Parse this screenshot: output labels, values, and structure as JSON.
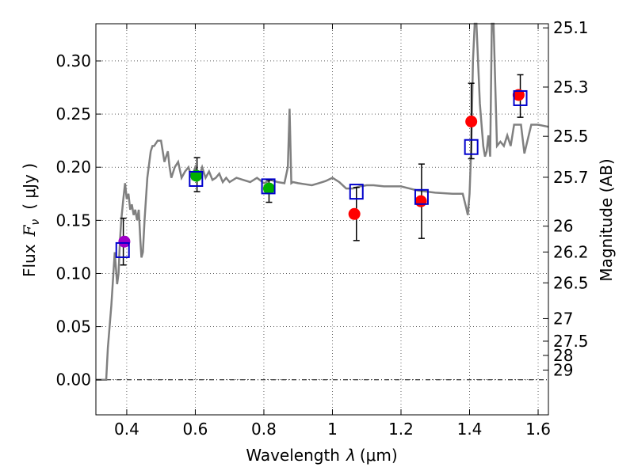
{
  "chart_data": {
    "type": "scatter",
    "xlabel_prefix": "Wavelength",
    "xlabel_unit": "(μm)",
    "ylabel_prefix": "Flux",
    "ylabel_unit": "( μJy )",
    "y2label": "Magnitude (AB)",
    "xlim": [
      0.31,
      1.63
    ],
    "ylim": [
      -0.033,
      0.335
    ],
    "x_ticks": [
      0.4,
      0.6,
      0.8,
      1.0,
      1.2,
      1.4,
      1.6
    ],
    "x_tick_labels": [
      "0.4",
      "0.6",
      "0.8",
      "1",
      "1.2",
      "1.4",
      "1.6"
    ],
    "y_ticks": [
      0.0,
      0.05,
      0.1,
      0.15,
      0.2,
      0.25,
      0.3
    ],
    "y_tick_labels": [
      "0.00",
      "0.05",
      "0.10",
      "0.15",
      "0.20",
      "0.25",
      "0.30"
    ],
    "mag_ticks": [
      25.1,
      25.3,
      25.5,
      25.7,
      26,
      26.2,
      26.5,
      27,
      27.5,
      28,
      29
    ],
    "mag_tick_labels": [
      "25.1",
      "25.3",
      "25.5",
      "25.7",
      "26",
      "26.2",
      "26.5",
      "27",
      "27.5",
      "28",
      "29"
    ],
    "grid": true,
    "colors": {
      "template": "#808080",
      "model_box": "#0000cc",
      "errorbar": "#000000",
      "zero_line": "#000000"
    },
    "template_spectrum": {
      "x": [
        0.31,
        0.34,
        0.345,
        0.355,
        0.365,
        0.372,
        0.376,
        0.38,
        0.384,
        0.39,
        0.395,
        0.4,
        0.405,
        0.41,
        0.415,
        0.42,
        0.425,
        0.43,
        0.435,
        0.44,
        0.443,
        0.447,
        0.452,
        0.46,
        0.47,
        0.475,
        0.48,
        0.49,
        0.5,
        0.51,
        0.52,
        0.525,
        0.53,
        0.54,
        0.55,
        0.56,
        0.57,
        0.58,
        0.59,
        0.6,
        0.61,
        0.62,
        0.63,
        0.64,
        0.65,
        0.66,
        0.67,
        0.68,
        0.69,
        0.7,
        0.72,
        0.74,
        0.76,
        0.78,
        0.8,
        0.82,
        0.84,
        0.86,
        0.87,
        0.875,
        0.88,
        0.885,
        0.9,
        0.92,
        0.94,
        0.96,
        0.98,
        1.0,
        1.02,
        1.04,
        1.06,
        1.08,
        1.1,
        1.12,
        1.15,
        1.2,
        1.25,
        1.3,
        1.35,
        1.38,
        1.39,
        1.395,
        1.4,
        1.405,
        1.41,
        1.415,
        1.42,
        1.43,
        1.44,
        1.445,
        1.45,
        1.455,
        1.46,
        1.465,
        1.47,
        1.48,
        1.49,
        1.5,
        1.51,
        1.52,
        1.53,
        1.55,
        1.56,
        1.58,
        1.6,
        1.63
      ],
      "y": [
        0.0,
        0.0,
        0.03,
        0.07,
        0.12,
        0.09,
        0.1,
        0.13,
        0.15,
        0.17,
        0.185,
        0.17,
        0.175,
        0.16,
        0.165,
        0.155,
        0.16,
        0.15,
        0.16,
        0.13,
        0.115,
        0.12,
        0.15,
        0.19,
        0.215,
        0.22,
        0.22,
        0.225,
        0.225,
        0.205,
        0.215,
        0.2,
        0.19,
        0.2,
        0.205,
        0.19,
        0.196,
        0.2,
        0.19,
        0.2,
        0.19,
        0.2,
        0.19,
        0.196,
        0.188,
        0.19,
        0.194,
        0.186,
        0.19,
        0.186,
        0.19,
        0.188,
        0.186,
        0.19,
        0.185,
        0.188,
        0.186,
        0.185,
        0.2,
        0.255,
        0.185,
        0.186,
        0.185,
        0.184,
        0.183,
        0.185,
        0.187,
        0.19,
        0.186,
        0.18,
        0.18,
        0.182,
        0.183,
        0.183,
        0.182,
        0.182,
        0.178,
        0.176,
        0.175,
        0.175,
        0.162,
        0.155,
        0.175,
        0.22,
        0.3,
        0.34,
        0.34,
        0.26,
        0.22,
        0.21,
        0.215,
        0.23,
        0.21,
        0.34,
        0.34,
        0.22,
        0.224,
        0.22,
        0.23,
        0.22,
        0.24,
        0.24,
        0.213,
        0.24,
        0.24,
        0.238
      ]
    },
    "photometry": [
      {
        "x": 0.393,
        "y": 0.13,
        "color": "#a000c8"
      },
      {
        "x": 0.603,
        "y": 0.192,
        "color": "#00b000"
      },
      {
        "x": 0.815,
        "y": 0.18,
        "color": "#00b000"
      },
      {
        "x": 1.064,
        "y": 0.156,
        "color": "#ff0000"
      },
      {
        "x": 1.258,
        "y": 0.168,
        "color": "#ff0000"
      },
      {
        "x": 1.405,
        "y": 0.243,
        "color": "#ff0000"
      },
      {
        "x": 1.543,
        "y": 0.268,
        "color": "#ff0000"
      }
    ],
    "error_bars": [
      {
        "x": 0.39,
        "low": 0.108,
        "high": 0.152
      },
      {
        "x": 0.605,
        "low": 0.177,
        "high": 0.209
      },
      {
        "x": 0.815,
        "low": 0.167,
        "high": 0.188
      },
      {
        "x": 1.07,
        "low": 0.131,
        "high": 0.181
      },
      {
        "x": 1.26,
        "low": 0.133,
        "high": 0.203
      },
      {
        "x": 1.405,
        "low": 0.208,
        "high": 0.279
      },
      {
        "x": 1.548,
        "low": 0.247,
        "high": 0.287
      }
    ],
    "model_points": [
      {
        "x": 0.388,
        "y": 0.122
      },
      {
        "x": 0.602,
        "y": 0.189
      },
      {
        "x": 0.813,
        "y": 0.182
      },
      {
        "x": 1.07,
        "y": 0.177
      },
      {
        "x": 1.26,
        "y": 0.172
      },
      {
        "x": 1.405,
        "y": 0.219
      },
      {
        "x": 1.548,
        "y": 0.265
      }
    ]
  }
}
